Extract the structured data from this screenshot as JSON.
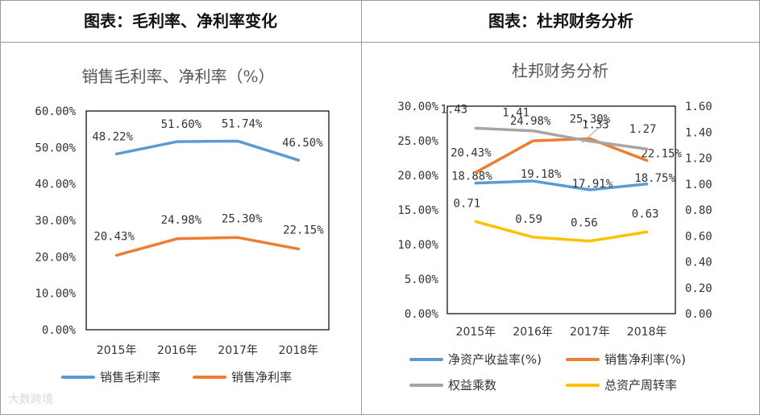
{
  "panels": {
    "left_header": "图表：毛利率、净利率变化",
    "right_header": "图表：杜邦财务分析"
  },
  "watermark": "大数跨境",
  "chart_data": [
    {
      "type": "line",
      "title": "销售毛利率、净利率（%）",
      "categories": [
        "2015年",
        "2016年",
        "2017年",
        "2018年"
      ],
      "ylim": [
        0,
        60
      ],
      "yticks": [
        "0.00%",
        "10.00%",
        "20.00%",
        "30.00%",
        "40.00%",
        "50.00%",
        "60.00%"
      ],
      "series": [
        {
          "name": "销售毛利率",
          "color": "#5b9bd5",
          "values": [
            48.22,
            51.6,
            51.74,
            46.5
          ],
          "labels": [
            "48.22%",
            "51.60%",
            "51.74%",
            "46.50%"
          ]
        },
        {
          "name": "销售净利率",
          "color": "#ed7d31",
          "values": [
            20.43,
            24.98,
            25.3,
            22.15
          ],
          "labels": [
            "20.43%",
            "24.98%",
            "25.30%",
            "22.15%"
          ]
        }
      ],
      "legend": "bottom"
    },
    {
      "type": "line",
      "title": "杜邦财务分析",
      "categories": [
        "2015年",
        "2016年",
        "2017年",
        "2018年"
      ],
      "ylim": [
        0,
        30
      ],
      "y2lim": [
        0,
        1.6
      ],
      "yticks": [
        "0.00%",
        "5.00%",
        "10.00%",
        "15.00%",
        "20.00%",
        "25.00%",
        "30.00%"
      ],
      "y2ticks": [
        "0.00",
        "0.20",
        "0.40",
        "0.60",
        "0.80",
        "1.00",
        "1.20",
        "1.40",
        "1.60"
      ],
      "series": [
        {
          "name": "净资产收益率(%)",
          "axis": "left",
          "color": "#5b9bd5",
          "values": [
            18.88,
            19.18,
            17.91,
            18.75
          ],
          "labels": [
            "18.88%",
            "19.18%",
            "17.91%",
            "18.75%"
          ]
        },
        {
          "name": "销售净利率(%)",
          "axis": "left",
          "color": "#ed7d31",
          "values": [
            20.43,
            24.98,
            25.3,
            22.15
          ],
          "labels": [
            "20.43%",
            "24.98%",
            "25.30%",
            "22.15%"
          ]
        },
        {
          "name": "权益乘数",
          "axis": "right",
          "color": "#a5a5a5",
          "values": [
            1.43,
            1.41,
            1.33,
            1.27
          ],
          "labels": [
            "1.43",
            "1.41",
            "1.33",
            "1.27"
          ]
        },
        {
          "name": "总资产周转率",
          "axis": "right",
          "color": "#ffc000",
          "values": [
            0.71,
            0.59,
            0.56,
            0.63
          ],
          "labels": [
            "0.71",
            "0.59",
            "0.56",
            "0.63"
          ]
        }
      ],
      "legend": "bottom"
    }
  ]
}
